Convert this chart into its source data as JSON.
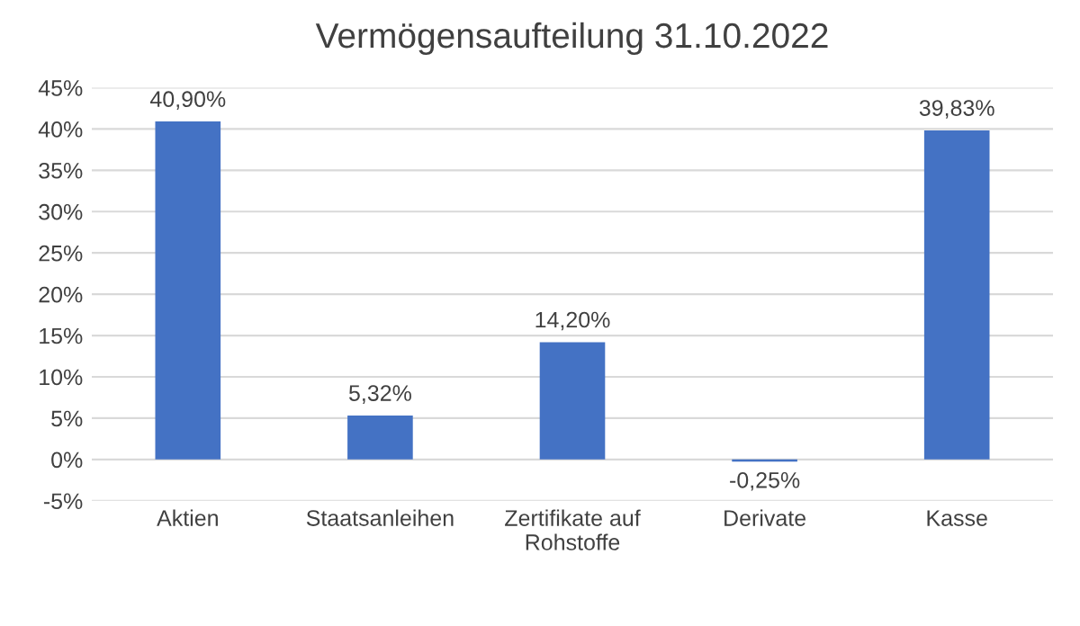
{
  "chart_data": {
    "type": "bar",
    "title": "Vermögensaufteilung 31.10.2022",
    "categories": [
      "Aktien",
      "Staatsanleihen",
      "Zertifikate auf\nRohstoffe",
      "Derivate",
      "Kasse"
    ],
    "values": [
      40.9,
      5.32,
      14.2,
      -0.25,
      39.83
    ],
    "value_labels": [
      "40,90%",
      "5,32%",
      "14,20%",
      "-0,25%",
      "39,83%"
    ],
    "color": "#4472c4",
    "ylim": [
      -5,
      45
    ],
    "yticks": [
      {
        "value": -5,
        "label": "-5%"
      },
      {
        "value": 0,
        "label": "0%"
      },
      {
        "value": 5,
        "label": "5%"
      },
      {
        "value": 10,
        "label": "10%"
      },
      {
        "value": 15,
        "label": "15%"
      },
      {
        "value": 20,
        "label": "20%"
      },
      {
        "value": 25,
        "label": "25%"
      },
      {
        "value": 30,
        "label": "30%"
      },
      {
        "value": 35,
        "label": "35%"
      },
      {
        "value": 40,
        "label": "40%"
      },
      {
        "value": 45,
        "label": "45%"
      }
    ],
    "grid": "y",
    "legend": false
  }
}
